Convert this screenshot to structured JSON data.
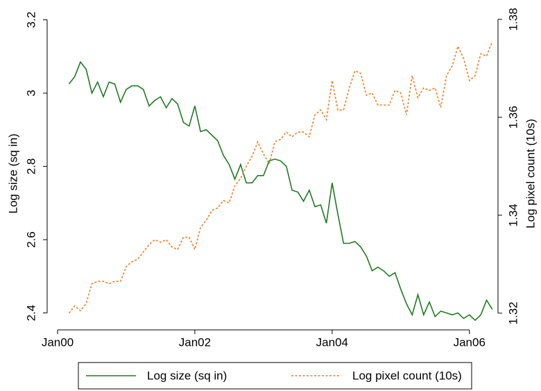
{
  "chart_data": {
    "type": "line",
    "x": [
      "2000-03",
      "2000-04",
      "2000-05",
      "2000-06",
      "2000-07",
      "2000-08",
      "2000-09",
      "2000-10",
      "2000-11",
      "2000-12",
      "2001-01",
      "2001-02",
      "2001-03",
      "2001-04",
      "2001-05",
      "2001-06",
      "2001-07",
      "2001-08",
      "2001-09",
      "2001-10",
      "2001-11",
      "2001-12",
      "2002-01",
      "2002-02",
      "2002-03",
      "2002-04",
      "2002-05",
      "2002-06",
      "2002-07",
      "2002-08",
      "2002-09",
      "2002-10",
      "2002-11",
      "2002-12",
      "2003-01",
      "2003-02",
      "2003-03",
      "2003-04",
      "2003-05",
      "2003-06",
      "2003-07",
      "2003-08",
      "2003-09",
      "2003-10",
      "2003-11",
      "2003-12",
      "2004-01",
      "2004-02",
      "2004-03",
      "2004-04",
      "2004-05",
      "2004-06",
      "2004-07",
      "2004-08",
      "2004-09",
      "2004-10",
      "2004-11",
      "2004-12",
      "2005-01",
      "2005-02",
      "2005-03",
      "2005-04",
      "2005-05",
      "2005-06",
      "2005-07",
      "2005-08",
      "2005-09",
      "2005-10",
      "2005-11",
      "2005-12",
      "2006-01",
      "2006-02",
      "2006-03",
      "2006-04",
      "2006-05"
    ],
    "series": [
      {
        "name": "Log size (sq in)",
        "color": "#1f7a1f",
        "line_style": "solid",
        "values": [
          3.025,
          3.045,
          3.085,
          3.065,
          3.0,
          3.03,
          2.99,
          3.03,
          3.025,
          2.975,
          3.01,
          3.02,
          3.02,
          3.01,
          2.965,
          2.98,
          2.99,
          2.96,
          2.985,
          2.97,
          2.92,
          2.91,
          2.965,
          2.895,
          2.9,
          2.885,
          2.87,
          2.83,
          2.805,
          2.765,
          2.805,
          2.755,
          2.755,
          2.775,
          2.775,
          2.815,
          2.82,
          2.815,
          2.8,
          2.735,
          2.73,
          2.705,
          2.735,
          2.69,
          2.695,
          2.645,
          2.755,
          2.67,
          2.59,
          2.59,
          2.595,
          2.58,
          2.555,
          2.515,
          2.525,
          2.515,
          2.5,
          2.51,
          2.465,
          2.425,
          2.395,
          2.45,
          2.395,
          2.43,
          2.39,
          2.405,
          2.4,
          2.395,
          2.4,
          2.385,
          2.395,
          2.38,
          2.395,
          2.435,
          2.41
        ]
      },
      {
        "name": "Log pixel count (10s)",
        "color": "#f47b20",
        "line_style": "dashed",
        "axis": "y2",
        "values": [
          1.32,
          1.3215,
          1.3205,
          1.322,
          1.326,
          1.3265,
          1.3265,
          1.326,
          1.3265,
          1.3265,
          1.3295,
          1.3305,
          1.331,
          1.3325,
          1.334,
          1.335,
          1.3345,
          1.335,
          1.3335,
          1.333,
          1.3355,
          1.3355,
          1.333,
          1.3375,
          1.339,
          1.341,
          1.3415,
          1.343,
          1.3425,
          1.346,
          1.3475,
          1.35,
          1.352,
          1.355,
          1.3525,
          1.3505,
          1.355,
          1.3555,
          1.357,
          1.356,
          1.357,
          1.357,
          1.356,
          1.3605,
          1.3615,
          1.3595,
          1.3675,
          1.3615,
          1.3615,
          1.366,
          1.3695,
          1.369,
          1.3645,
          1.365,
          1.3625,
          1.3625,
          1.3625,
          1.3655,
          1.365,
          1.3605,
          1.3685,
          1.364,
          1.366,
          1.3655,
          1.366,
          1.362,
          1.3685,
          1.3705,
          1.3745,
          1.372,
          1.3675,
          1.3685,
          1.373,
          1.3725,
          1.3755
        ]
      }
    ],
    "y_label": "Log size (sq in)",
    "y2_label": "Log pixel count (10s)",
    "xlim": [
      "1999-11",
      "2006-06"
    ],
    "xticks": [
      {
        "value": "2000-01",
        "label": "Jan00"
      },
      {
        "value": "2002-01",
        "label": "Jan02"
      },
      {
        "value": "2004-01",
        "label": "Jan04"
      },
      {
        "value": "2006-01",
        "label": "Jan06"
      }
    ],
    "ylim": [
      2.35,
      3.22
    ],
    "yticks": [
      {
        "value": 2.4,
        "label": "2.4"
      },
      {
        "value": 2.6,
        "label": "2.6"
      },
      {
        "value": 2.8,
        "label": "2.8"
      },
      3,
      {
        "value": 3.2,
        "label": "3.2"
      }
    ],
    "y2lim": [
      1.3163,
      1.3814
    ],
    "y2ticks": [
      1.32,
      1.34,
      1.36,
      1.38
    ],
    "legend": "bottom"
  }
}
